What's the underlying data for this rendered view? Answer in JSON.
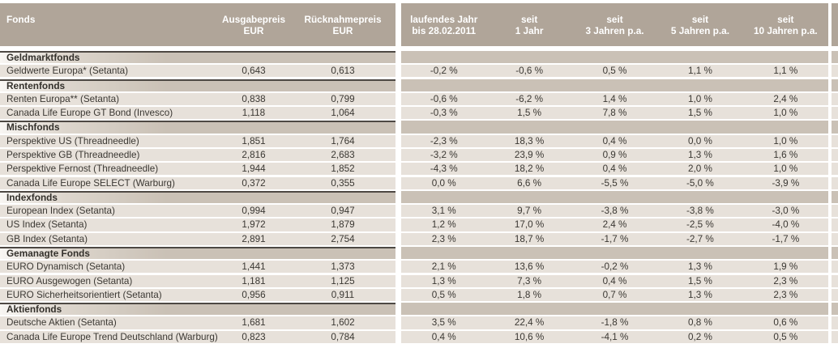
{
  "theme": {
    "header_bg": "#b0a599",
    "section_bg": "#cac1b6",
    "row_bg": "#e7e1da",
    "text_color": "#3b3833"
  },
  "header": {
    "fonds": "Fonds",
    "fonds_line2": "",
    "ausgabepreis": {
      "line1": "Ausgabepreis",
      "line2": "EUR"
    },
    "ruecknahmepreis": {
      "line1": "Rücknahmepreis",
      "line2": "EUR"
    },
    "perf_cols": [
      {
        "line1": "laufendes Jahr",
        "line2": "bis 28.02.2011"
      },
      {
        "line1": "seit",
        "line2": "1 Jahr"
      },
      {
        "line1": "seit",
        "line2": "3 Jahren p.a."
      },
      {
        "line1": "seit",
        "line2": "5 Jahren p.a."
      },
      {
        "line1": "seit",
        "line2": "10 Jahren p.a."
      }
    ]
  },
  "sections": [
    {
      "label": "Geldmarktfonds",
      "rows": [
        {
          "name": "Geldwerte Europa* (Setanta)",
          "ausgabepreis": "0,643",
          "ruecknahmepreis": "0,613",
          "perf": [
            "-0,2 %",
            "-0,6 %",
            "0,5 %",
            "1,1 %",
            "1,1 %"
          ]
        }
      ]
    },
    {
      "label": "Rentenfonds",
      "rows": [
        {
          "name": "Renten Europa** (Setanta)",
          "ausgabepreis": "0,838",
          "ruecknahmepreis": "0,799",
          "perf": [
            "-0,6 %",
            "-6,2 %",
            "1,4 %",
            "1,0 %",
            "2,4 %"
          ]
        },
        {
          "name": "Canada Life Europe GT Bond (Invesco)",
          "ausgabepreis": "1,118",
          "ruecknahmepreis": "1,064",
          "perf": [
            "-0,3 %",
            "1,5 %",
            "7,8 %",
            "1,5 %",
            "1,0 %"
          ]
        }
      ]
    },
    {
      "label": "Mischfonds",
      "rows": [
        {
          "name": "Perspektive US (Threadneedle)",
          "ausgabepreis": "1,851",
          "ruecknahmepreis": "1,764",
          "perf": [
            "-2,3 %",
            "18,3 %",
            "0,4 %",
            "0,0 %",
            "1,0 %"
          ]
        },
        {
          "name": "Perspektive GB (Threadneedle)",
          "ausgabepreis": "2,816",
          "ruecknahmepreis": "2,683",
          "perf": [
            "-3,2 %",
            "23,9 %",
            "0,9 %",
            "1,3 %",
            "1,6 %"
          ]
        },
        {
          "name": "Perspektive Fernost (Threadneedle)",
          "ausgabepreis": "1,944",
          "ruecknahmepreis": "1,852",
          "perf": [
            "-4,3 %",
            "18,2 %",
            "0,4 %",
            "2,0 %",
            "1,0 %"
          ]
        },
        {
          "name": "Canada Life Europe SELECT (Warburg)",
          "ausgabepreis": "0,372",
          "ruecknahmepreis": "0,355",
          "perf": [
            "0,0 %",
            "6,6 %",
            "-5,5 %",
            "-5,0 %",
            "-3,9 %"
          ]
        }
      ]
    },
    {
      "label": "Indexfonds",
      "rows": [
        {
          "name": "European Index (Setanta)",
          "ausgabepreis": "0,994",
          "ruecknahmepreis": "0,947",
          "perf": [
            "3,1 %",
            "9,7 %",
            "-3,8 %",
            "-3,8 %",
            "-3,0 %"
          ]
        },
        {
          "name": "US Index (Setanta)",
          "ausgabepreis": "1,972",
          "ruecknahmepreis": "1,879",
          "perf": [
            "1,2 %",
            "17,0 %",
            "2,4 %",
            "-2,5 %",
            "-4,0 %"
          ]
        },
        {
          "name": "GB Index (Setanta)",
          "ausgabepreis": "2,891",
          "ruecknahmepreis": "2,754",
          "perf": [
            "2,3 %",
            "18,7 %",
            "-1,7 %",
            "-2,7 %",
            "-1,7 %"
          ]
        }
      ]
    },
    {
      "label": "Gemanagte Fonds",
      "rows": [
        {
          "name": "EURO Dynamisch (Setanta)",
          "ausgabepreis": "1,441",
          "ruecknahmepreis": "1,373",
          "perf": [
            "2,1 %",
            "13,6 %",
            "-0,2 %",
            "1,3 %",
            "1,9 %"
          ]
        },
        {
          "name": "EURO Ausgewogen (Setanta)",
          "ausgabepreis": "1,181",
          "ruecknahmepreis": "1,125",
          "perf": [
            "1,3 %",
            "7,3 %",
            "0,4 %",
            "1,5 %",
            "2,3 %"
          ]
        },
        {
          "name": "EURO Sicherheitsorientiert (Setanta)",
          "ausgabepreis": "0,956",
          "ruecknahmepreis": "0,911",
          "perf": [
            "0,5 %",
            "1,8 %",
            "0,7 %",
            "1,3 %",
            "2,3 %"
          ]
        }
      ]
    },
    {
      "label": "Aktienfonds",
      "rows": [
        {
          "name": "Deutsche Aktien (Setanta)",
          "ausgabepreis": "1,681",
          "ruecknahmepreis": "1,602",
          "perf": [
            "3,5 %",
            "22,4 %",
            "-1,8 %",
            "0,8 %",
            "0,6 %"
          ]
        },
        {
          "name": "Canada Life Europe Trend Deutschland (Warburg)",
          "ausgabepreis": "0,823",
          "ruecknahmepreis": "0,784",
          "perf": [
            "0,4 %",
            "10,6 %",
            "-4,1 %",
            "0,2 %",
            "0,5 %"
          ]
        }
      ]
    }
  ]
}
